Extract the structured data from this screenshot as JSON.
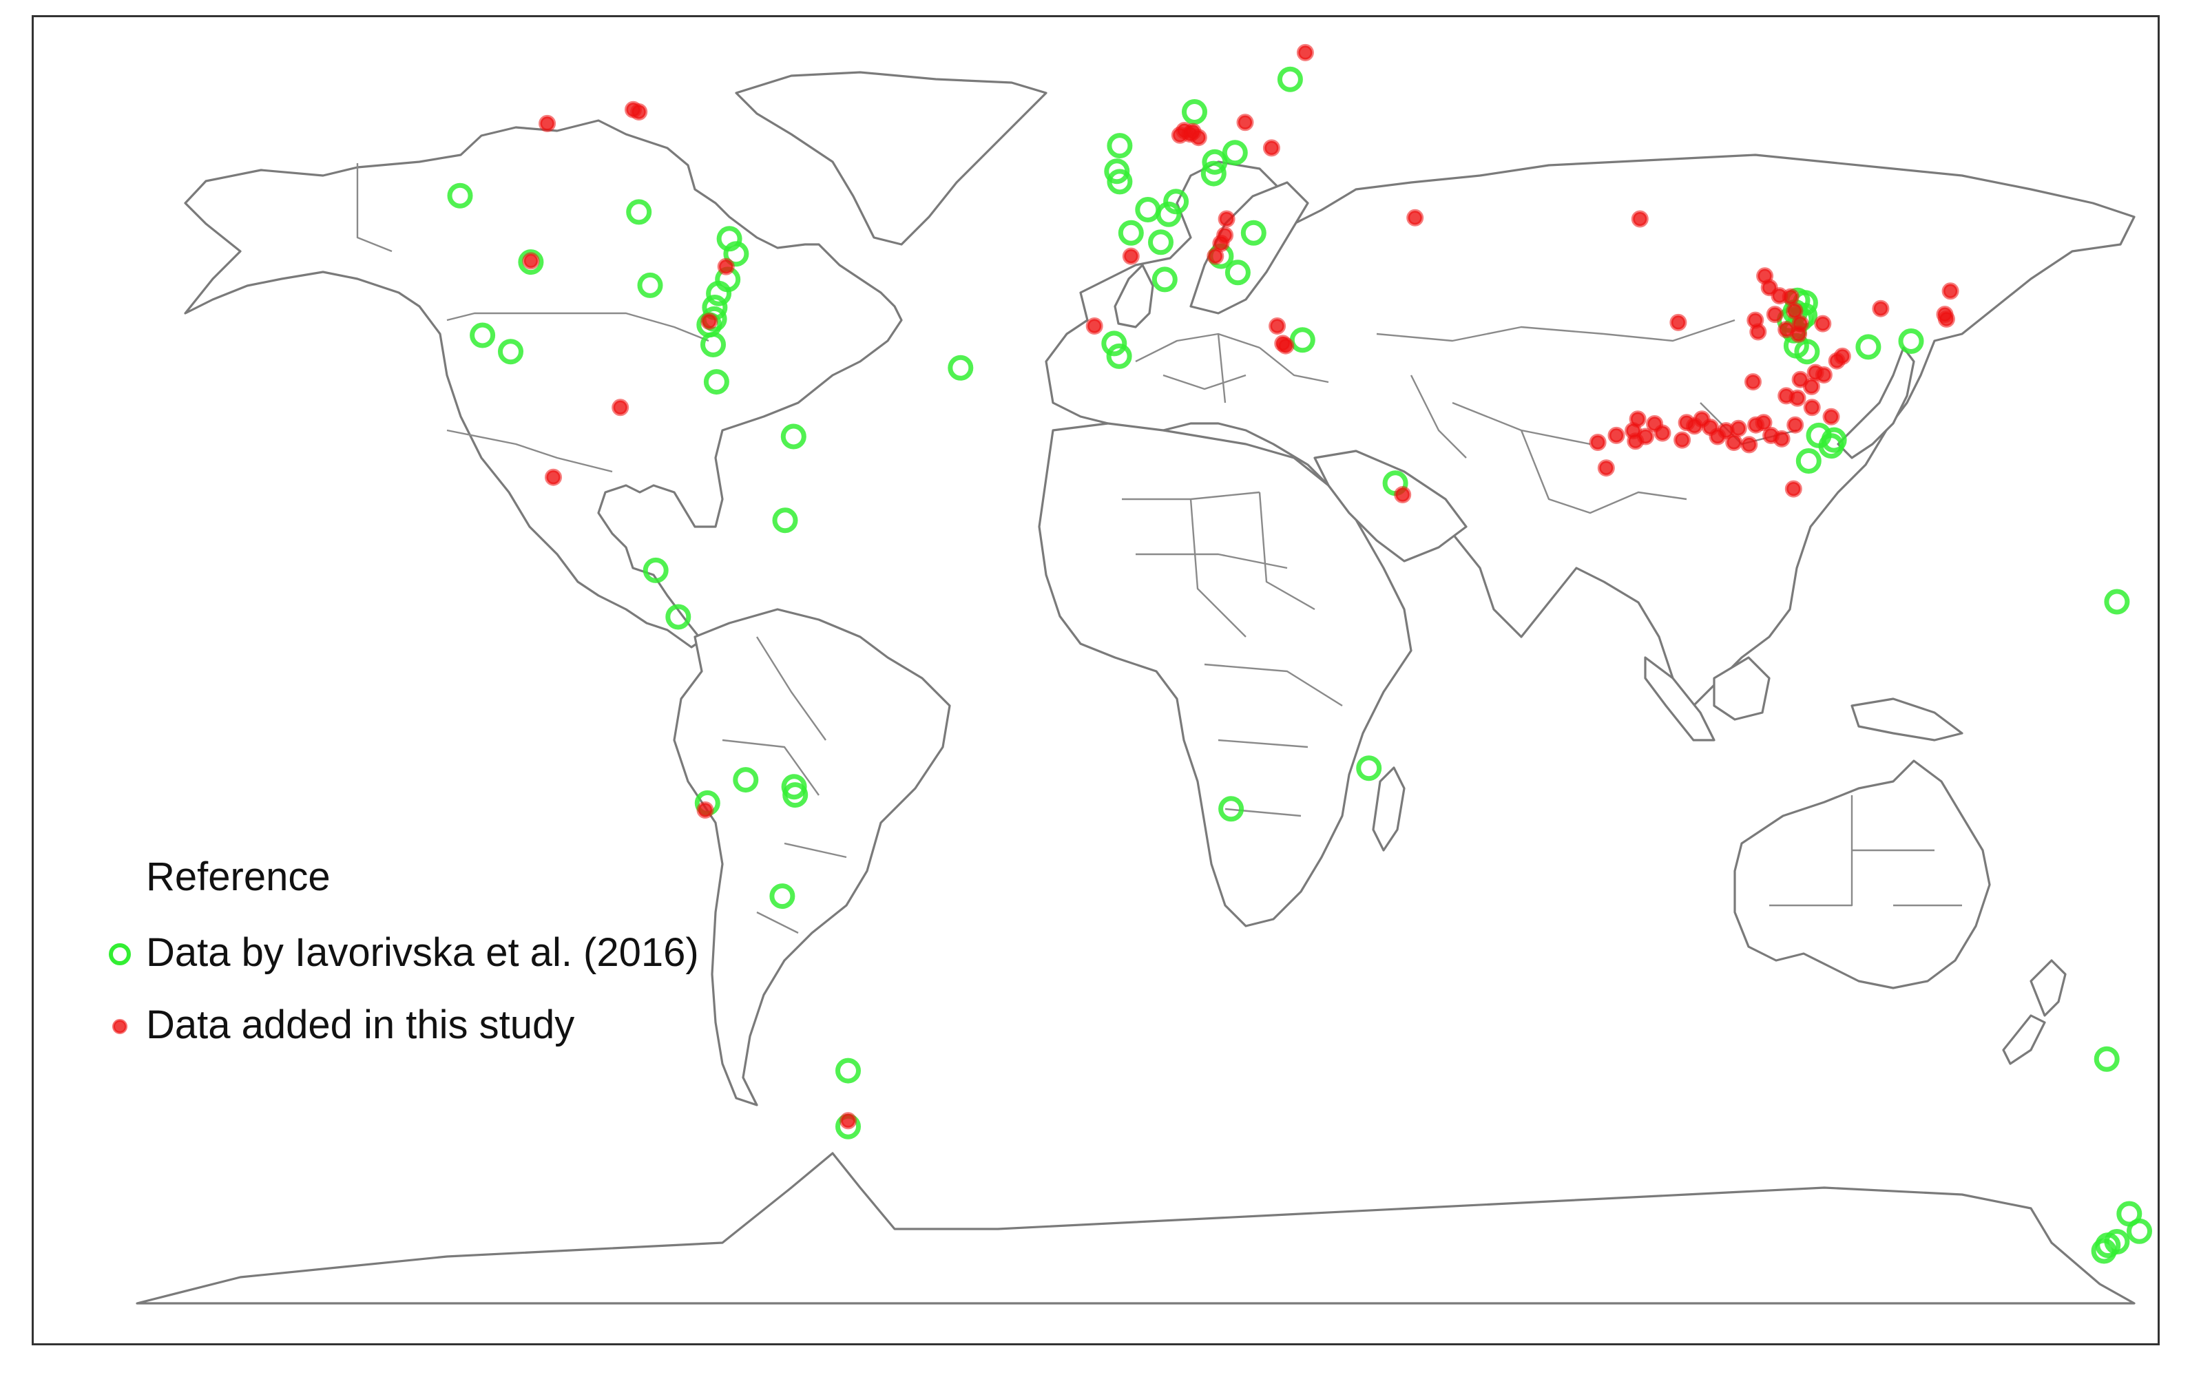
{
  "legend": {
    "title": "Reference",
    "items": [
      {
        "label": "Data by Iavorivska et al. (2016)",
        "style": "ring",
        "color": "#33ee33"
      },
      {
        "label": "Data added in this study",
        "style": "dot",
        "color": "#ee1111"
      }
    ]
  },
  "colors": {
    "existing": "#33ee33",
    "added": "#ee1111",
    "land_outline": "#7a7a7a",
    "frame": "#333333"
  },
  "map": {
    "projection": "equirectangular",
    "lon_range": [
      -180,
      180
    ],
    "lat_range": [
      -90,
      90
    ],
    "existing_sites": [
      [
        -123.8,
        46.2
      ],
      [
        -92.0,
        44.8
      ],
      [
        -90.0,
        38.5
      ],
      [
        -111.2,
        40.5
      ],
      [
        -119.8,
        34.2
      ],
      [
        -114.8,
        32.8
      ],
      [
        -75.9,
        42.5
      ],
      [
        -74.7,
        41.2
      ],
      [
        -76.2,
        39.0
      ],
      [
        -77.8,
        37.8
      ],
      [
        -78.5,
        36.6
      ],
      [
        -78.6,
        35.6
      ],
      [
        -79.5,
        35.1
      ],
      [
        -78.8,
        33.4
      ],
      [
        -78.2,
        30.2
      ],
      [
        -64.5,
        25.5
      ],
      [
        -66.0,
        18.3
      ],
      [
        -89.0,
        14.0
      ],
      [
        -85.0,
        10.0
      ],
      [
        -79.8,
        -6.0
      ],
      [
        -73.0,
        -4.0
      ],
      [
        -64.4,
        -4.6
      ],
      [
        -64.2,
        -5.3
      ],
      [
        -66.5,
        -14.0
      ],
      [
        -54.8,
        -29.0
      ],
      [
        -54.8,
        -33.8
      ],
      [
        -6.5,
        50.5
      ],
      [
        -7.0,
        48.3
      ],
      [
        -6.5,
        47.4
      ],
      [
        -4.5,
        43.0
      ],
      [
        -1.5,
        45.0
      ],
      [
        0.8,
        42.2
      ],
      [
        2.2,
        44.6
      ],
      [
        3.5,
        45.7
      ],
      [
        1.5,
        39.0
      ],
      [
        -7.5,
        33.5
      ],
      [
        -6.6,
        32.4
      ],
      [
        6.8,
        53.4
      ],
      [
        10.2,
        48.1
      ],
      [
        10.4,
        49.1
      ],
      [
        14.0,
        49.9
      ],
      [
        17.3,
        43.0
      ],
      [
        14.5,
        39.6
      ],
      [
        23.8,
        56.2
      ],
      [
        11.5,
        41.0
      ],
      [
        -34.8,
        31.4
      ],
      [
        26.0,
        33.8
      ],
      [
        42.5,
        21.5
      ],
      [
        13.3,
        -6.5
      ],
      [
        37.8,
        -3.0
      ],
      [
        113.6,
        36.2
      ],
      [
        114.0,
        37.2
      ],
      [
        114.6,
        35.6
      ],
      [
        115.3,
        35.9
      ],
      [
        112.6,
        35.5
      ],
      [
        113.8,
        33.3
      ],
      [
        115.7,
        32.8
      ],
      [
        113.4,
        34.6
      ],
      [
        115.4,
        37.0
      ],
      [
        126.6,
        33.2
      ],
      [
        134.2,
        33.7
      ],
      [
        120.5,
        25.2
      ],
      [
        120.0,
        24.7
      ],
      [
        117.8,
        25.6
      ],
      [
        116.0,
        23.4
      ],
      [
        170.8,
        11.3
      ],
      [
        169.0,
        -28.0
      ],
      [
        173.0,
        -41.3
      ],
      [
        174.8,
        -42.8
      ],
      [
        170.8,
        -43.7
      ],
      [
        169.2,
        -44.0
      ],
      [
        168.5,
        -44.5
      ]
    ],
    "added_sites": [
      [
        -108.3,
        52.4
      ],
      [
        -92.0,
        53.4
      ],
      [
        -93.0,
        53.6
      ],
      [
        -111.2,
        40.6
      ],
      [
        -76.5,
        40.1
      ],
      [
        -79.5,
        35.4
      ],
      [
        -95.3,
        28.0
      ],
      [
        -107.2,
        22.0
      ],
      [
        -80.2,
        -6.6
      ],
      [
        -54.8,
        -33.3
      ],
      [
        -4.5,
        41.0
      ],
      [
        -11.0,
        35.0
      ],
      [
        5.0,
        51.8
      ],
      [
        6.0,
        51.5
      ],
      [
        6.5,
        51.7
      ],
      [
        7.5,
        51.2
      ],
      [
        4.2,
        51.4
      ],
      [
        15.8,
        52.5
      ],
      [
        20.5,
        50.3
      ],
      [
        12.5,
        44.2
      ],
      [
        12.2,
        42.8
      ],
      [
        11.5,
        42.1
      ],
      [
        10.5,
        41.0
      ],
      [
        21.5,
        35.0
      ],
      [
        22.5,
        33.5
      ],
      [
        23.0,
        33.3
      ],
      [
        26.5,
        58.5
      ],
      [
        46.0,
        44.3
      ],
      [
        43.8,
        20.5
      ],
      [
        86.0,
        44.2
      ],
      [
        92.8,
        35.3
      ],
      [
        108.2,
        39.3
      ],
      [
        109.0,
        38.3
      ],
      [
        110.8,
        37.6
      ],
      [
        112.8,
        37.5
      ],
      [
        113.5,
        36.3
      ],
      [
        114.5,
        35.2
      ],
      [
        114.2,
        34.3
      ],
      [
        112.0,
        34.7
      ],
      [
        110.0,
        36.0
      ],
      [
        106.5,
        35.5
      ],
      [
        107.0,
        34.5
      ],
      [
        121.0,
        32.0
      ],
      [
        122.0,
        32.4
      ],
      [
        118.5,
        35.2
      ],
      [
        117.2,
        31.0
      ],
      [
        116.6,
        28.0
      ],
      [
        120.0,
        27.2
      ],
      [
        113.6,
        26.5
      ],
      [
        113.3,
        21.0
      ],
      [
        140.2,
        36.0
      ],
      [
        140.5,
        35.6
      ],
      [
        141.2,
        38.0
      ],
      [
        128.8,
        36.5
      ],
      [
        78.5,
        25.0
      ],
      [
        80.0,
        22.8
      ],
      [
        81.8,
        25.6
      ],
      [
        84.8,
        26.0
      ],
      [
        85.2,
        25.1
      ],
      [
        85.6,
        27.0
      ],
      [
        87.0,
        25.5
      ],
      [
        88.6,
        26.6
      ],
      [
        90.0,
        25.8
      ],
      [
        93.5,
        25.2
      ],
      [
        94.3,
        26.7
      ],
      [
        95.7,
        26.4
      ],
      [
        97.0,
        27.0
      ],
      [
        98.5,
        26.3
      ],
      [
        99.8,
        25.5
      ],
      [
        101.3,
        26.0
      ],
      [
        102.7,
        25.0
      ],
      [
        103.5,
        26.2
      ],
      [
        105.4,
        24.8
      ],
      [
        106.6,
        26.5
      ],
      [
        108.0,
        26.7
      ],
      [
        109.3,
        25.6
      ],
      [
        111.2,
        25.3
      ],
      [
        112.0,
        29.0
      ],
      [
        114.0,
        28.8
      ],
      [
        114.5,
        30.4
      ],
      [
        116.5,
        29.8
      ],
      [
        118.7,
        30.8
      ],
      [
        106.1,
        30.2
      ]
    ]
  }
}
